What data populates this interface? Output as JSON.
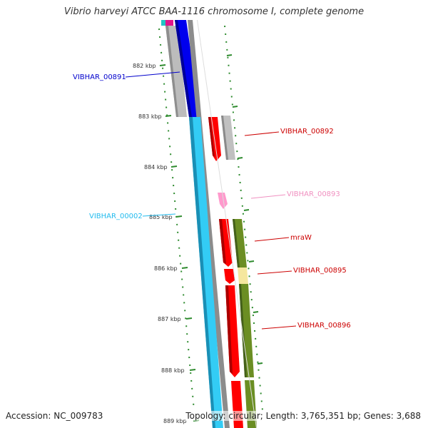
{
  "map": {
    "title": "Vibrio harveyi ATCC BAA-1116 chromosome I, complete genome",
    "accession": "Accession: NC_009783",
    "summary": "Topology: circular; Length: 3,765,351 bp; Genes: 3,688"
  },
  "ticks": [
    "882 kbp",
    "883 kbp",
    "884 kbp",
    "885 kbp",
    "886 kbp",
    "887 kbp",
    "888 kbp",
    "889 kbp"
  ],
  "genes": [
    {
      "id": "VIBHAR_00891",
      "label": "VIBHAR_00891",
      "color": "#0000cc"
    },
    {
      "id": "VIBHAR_00892",
      "label": "VIBHAR_00892",
      "color": "#cc0000"
    },
    {
      "id": "VIBHAR_00893",
      "label": "VIBHAR_00893",
      "color": "#f090c0"
    },
    {
      "id": "VIBHAR_00002",
      "label": "VIBHAR_00002",
      "color": "#22bbee"
    },
    {
      "id": "mraW",
      "label": "mraW",
      "color": "#cc0000"
    },
    {
      "id": "VIBHAR_00895",
      "label": "VIBHAR_00895",
      "color": "#cc0000"
    },
    {
      "id": "VIBHAR_00896",
      "label": "VIBHAR_00896",
      "color": "#cc0000"
    }
  ],
  "colors": {
    "cds_forward": "#ff0000",
    "cds_reverse_blue": "#0000ee",
    "cds_light_blue": "#33ccf5",
    "gc_olive": "#6b8e23",
    "gc_pale": "#f5e79e",
    "gray_backbone": "#888888",
    "gray_feature": "#bbbbbb",
    "pink_feature": "#ff99cc",
    "dots": "#2e8b2e"
  }
}
